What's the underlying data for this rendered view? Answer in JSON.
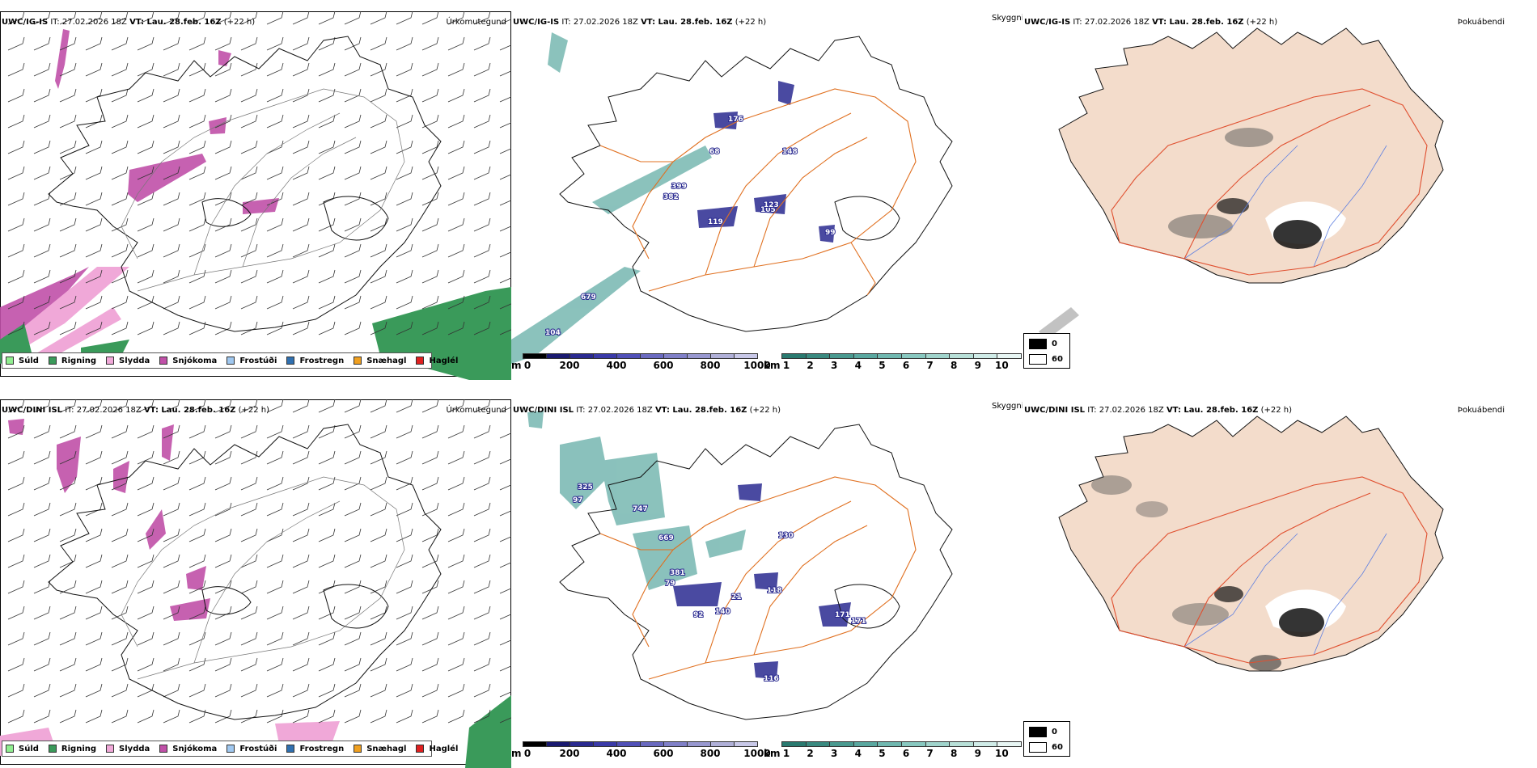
{
  "panels": [
    {
      "model": "UWC/IG-IS",
      "it": "IT: 27.02.2026 18Z",
      "vt_label": "VT: Lau. 28.feb. 16Z",
      "lead": "(+22 h)",
      "right": "Úrkomutegund"
    },
    {
      "model": "UWC/IG-IS",
      "it": "IT: 27.02.2026 18Z",
      "vt_label": "VT: Lau. 28.feb. 16Z",
      "lead": "(+22 h)",
      "right": "Skyggni"
    },
    {
      "model": "UWC/IG-IS",
      "it": "IT: 27.02.2026 18Z",
      "vt_label": "VT: Lau. 28.feb. 16Z",
      "lead": "(+22 h)",
      "right": "Þokuábendi"
    },
    {
      "model": "UWC/DINI ISL",
      "it": "IT: 27.02.2026 18Z",
      "vt_label": "VT: Lau. 28.feb. 16Z",
      "lead": "(+22 h)",
      "right": "Úrkomutegund"
    },
    {
      "model": "UWC/DINI ISL",
      "it": "IT: 27.02.2026 18Z",
      "vt_label": "VT: Lau. 28.feb. 16Z",
      "lead": "(+22 h)",
      "right": "Skyggni"
    },
    {
      "model": "UWC/DINI ISL",
      "it": "IT: 27.02.2026 18Z",
      "vt_label": "VT: Lau. 28.feb. 16Z",
      "lead": "(+22 h)",
      "right": "Þokuábendi"
    }
  ],
  "precip_legend": [
    {
      "label": "Súld",
      "color": "#90ee90"
    },
    {
      "label": "Rigning",
      "color": "#3a9a5a"
    },
    {
      "label": "Slydda",
      "color": "#f0a8d8"
    },
    {
      "label": "Snjókoma",
      "color": "#c050a8"
    },
    {
      "label": "Frostúði",
      "color": "#a0c8f0"
    },
    {
      "label": "Frostregn",
      "color": "#3070b0"
    },
    {
      "label": "Snæhagl",
      "color": "#f0a020"
    },
    {
      "label": "Haglél",
      "color": "#e02020"
    }
  ],
  "ceiling_bar": {
    "unit": "m",
    "ticks": [
      "0",
      "200",
      "400",
      "600",
      "800",
      "1000"
    ],
    "colors": [
      "#000000",
      "#1a1a70",
      "#2a2a90",
      "#3a3aa8",
      "#5050b8",
      "#6a6ac0",
      "#8080c8",
      "#9898d0",
      "#b0b0d8",
      "#c8c8e8"
    ]
  },
  "vis_bar": {
    "unit": "km",
    "ticks": [
      "1",
      "2",
      "3",
      "4",
      "5",
      "6",
      "7",
      "8",
      "9",
      "10"
    ],
    "colors": [
      "#2a7a70",
      "#3a8a80",
      "#4a9a90",
      "#5aa8a0",
      "#70b8b0",
      "#88c8c0",
      "#a0d4cc",
      "#b8e0d8",
      "#d0ece8",
      "#e8f6f4"
    ]
  },
  "fog_legend": [
    {
      "label": "0",
      "color": "#000000"
    },
    {
      "label": "60",
      "color": "#ffffff"
    }
  ],
  "vis_labels_top": [
    "176",
    "68",
    "148",
    "399",
    "382",
    "105",
    "123",
    "119",
    "99",
    "679",
    "104"
  ],
  "vis_labels_bottom": [
    "325",
    "97",
    "747",
    "669",
    "130",
    "381",
    "79",
    "92",
    "140",
    "21",
    "118",
    "171",
    "171",
    "116"
  ],
  "colors": {
    "road": "#e07020",
    "outline": "#000000",
    "ceiling": "#3a3aa8",
    "vis": "#5aa8a0",
    "snow": "#c050a8",
    "rain": "#3a9a5a",
    "sleet": "#f0a8d8",
    "land": "#f3dccb",
    "river": "#6080e0",
    "fogroad": "#e05030"
  }
}
